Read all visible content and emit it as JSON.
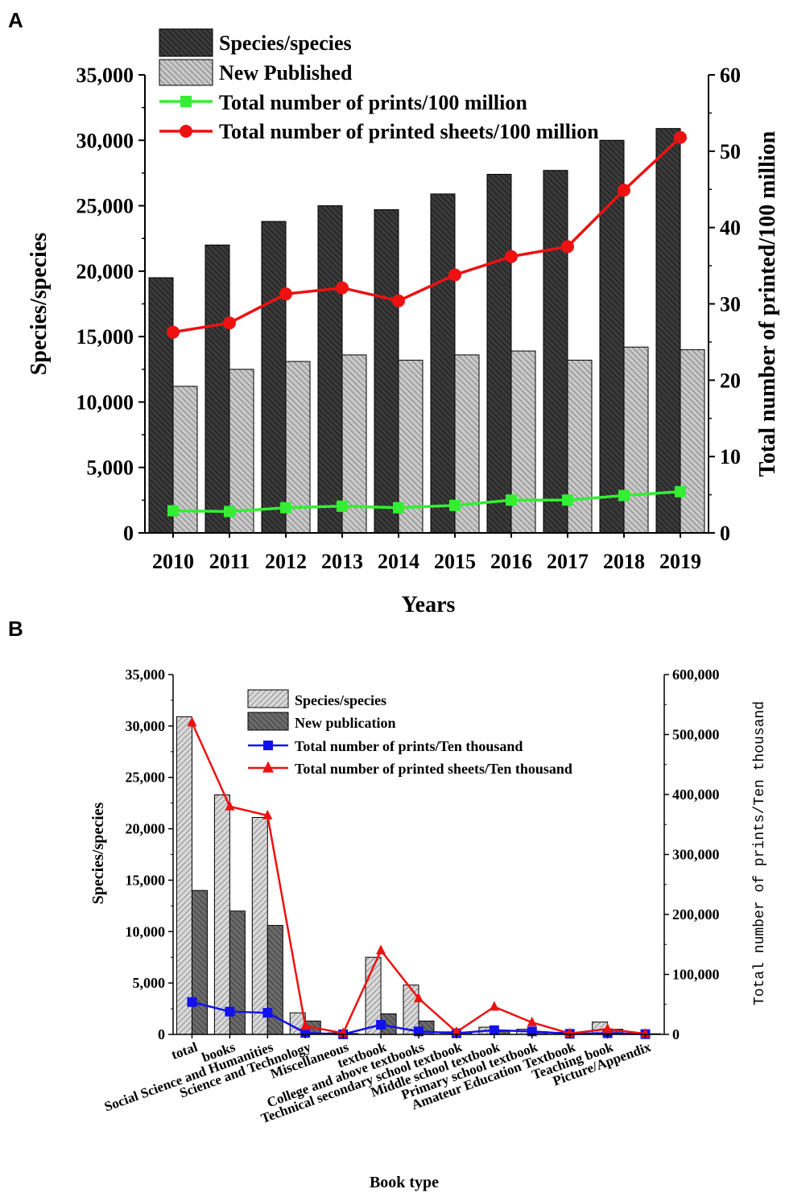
{
  "chart_data": [
    {
      "panel": "A",
      "type": "bar",
      "xlabel": "Years",
      "ylabel": "Species/species",
      "y2label": "Total number of printed/100 million",
      "ylim": [
        0,
        35000
      ],
      "y2lim": [
        0,
        60
      ],
      "yticks": [
        "0",
        "5,000",
        "10,000",
        "15,000",
        "20,000",
        "25,000",
        "30,000",
        "35,000"
      ],
      "y2ticks": [
        "0",
        "10",
        "20",
        "30",
        "40",
        "50",
        "60"
      ],
      "categories": [
        "2010",
        "2011",
        "2012",
        "2013",
        "2014",
        "2015",
        "2016",
        "2017",
        "2018",
        "2019"
      ],
      "series": [
        {
          "name": "Species/species",
          "kind": "bar",
          "axis": "left",
          "color": "#3a3a3a",
          "values": [
            19500,
            22000,
            23800,
            25000,
            24700,
            25900,
            27400,
            27700,
            30000,
            30900
          ]
        },
        {
          "name": "New Published",
          "kind": "bar",
          "axis": "left",
          "color": "#c8c8c8",
          "values": [
            11200,
            12500,
            13100,
            13600,
            13200,
            13600,
            13900,
            13200,
            14200,
            14000
          ]
        },
        {
          "name": "Total number of prints/100 million",
          "kind": "line",
          "marker": "square",
          "axis": "right",
          "color": "#33ee33",
          "values": [
            2.9,
            2.8,
            3.3,
            3.5,
            3.3,
            3.6,
            4.3,
            4.3,
            4.9,
            5.4
          ]
        },
        {
          "name": "Total number of printed sheets/100 million",
          "kind": "line",
          "marker": "circle",
          "axis": "right",
          "color": "#ee1111",
          "values": [
            26.3,
            27.5,
            31.3,
            32.1,
            30.4,
            33.8,
            36.2,
            37.5,
            44.9,
            51.8
          ]
        }
      ]
    },
    {
      "panel": "B",
      "type": "bar",
      "xlabel": "Book type",
      "ylabel": "Species/species",
      "y2label": "Total number of prints/Ten thousand",
      "ylim": [
        0,
        35000
      ],
      "y2lim": [
        0,
        600000
      ],
      "yticks": [
        "0",
        "5,000",
        "10,000",
        "15,000",
        "20,000",
        "25,000",
        "30,000",
        "35,000"
      ],
      "y2ticks": [
        "0",
        "100,000",
        "200,000",
        "300,000",
        "400,000",
        "500,000",
        "600,000"
      ],
      "categories": [
        "total",
        "books",
        "Social Science and Humanities",
        "Science and Technology",
        "Miscellaneous",
        "textbook",
        "College and above textbooks",
        "Technical secondary school textbook",
        "Middle school textbook",
        "Primary school textbook",
        "Amateur Education Textbook",
        "Teaching book",
        "Picture/Appendix"
      ],
      "series": [
        {
          "name": "Species/species",
          "kind": "bar",
          "axis": "left",
          "color": "#d8d8d8",
          "values": [
            30900,
            23300,
            21100,
            2100,
            150,
            7500,
            4800,
            250,
            700,
            500,
            200,
            1200,
            120
          ]
        },
        {
          "name": "New publication",
          "kind": "bar",
          "axis": "left",
          "color": "#6a6a6a",
          "values": [
            14000,
            12000,
            10600,
            1300,
            80,
            2000,
            1300,
            150,
            300,
            250,
            100,
            500,
            60
          ]
        },
        {
          "name": "Total number of prints/Ten thousand",
          "kind": "line",
          "marker": "square",
          "axis": "right",
          "color": "#1111ee",
          "values": [
            54000,
            38000,
            36000,
            2500,
            200,
            16000,
            5000,
            2000,
            7000,
            5000,
            1000,
            2000,
            500
          ]
        },
        {
          "name": "Total number of printed sheets/Ten thousand",
          "kind": "line",
          "marker": "triangle",
          "axis": "right",
          "color": "#ee1111",
          "values": [
            520000,
            380000,
            365000,
            14000,
            2000,
            140000,
            60000,
            4000,
            46000,
            20000,
            1500,
            9000,
            1000
          ]
        }
      ]
    }
  ]
}
